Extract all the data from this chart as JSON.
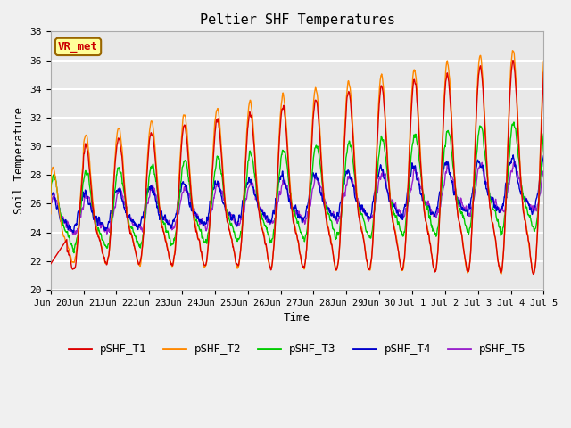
{
  "title": "Peltier SHF Temperatures",
  "xlabel": "Time",
  "ylabel": "Soil Temperature",
  "ylim": [
    20,
    38
  ],
  "yticks": [
    20,
    22,
    24,
    26,
    28,
    30,
    32,
    34,
    36,
    38
  ],
  "background_color": "#f0f0f0",
  "plot_bg_color": "#e8e8e8",
  "grid_color": "#ffffff",
  "series_colors": {
    "pSHF_T1": "#dd0000",
    "pSHF_T2": "#ff8800",
    "pSHF_T3": "#00cc00",
    "pSHF_T4": "#0000cc",
    "pSHF_T5": "#9922cc"
  },
  "annotation_text": "VR_met",
  "annotation_color": "#cc0000",
  "annotation_bg": "#ffff99",
  "annotation_border": "#996600",
  "n_days": 15,
  "pts_per_day": 96,
  "xtick_labels": [
    "Jun 20",
    "Jun 21",
    "Jun 22",
    "Jun 23",
    "Jun 24",
    "Jun 25",
    "Jun 26",
    "Jun 27",
    "Jun 28",
    "Jun 29",
    "Jun 30",
    "Jul 1",
    "Jul 2",
    "Jul 3",
    "Jul 4",
    "Jul 5"
  ],
  "font_family": "monospace",
  "lw": 1.0
}
